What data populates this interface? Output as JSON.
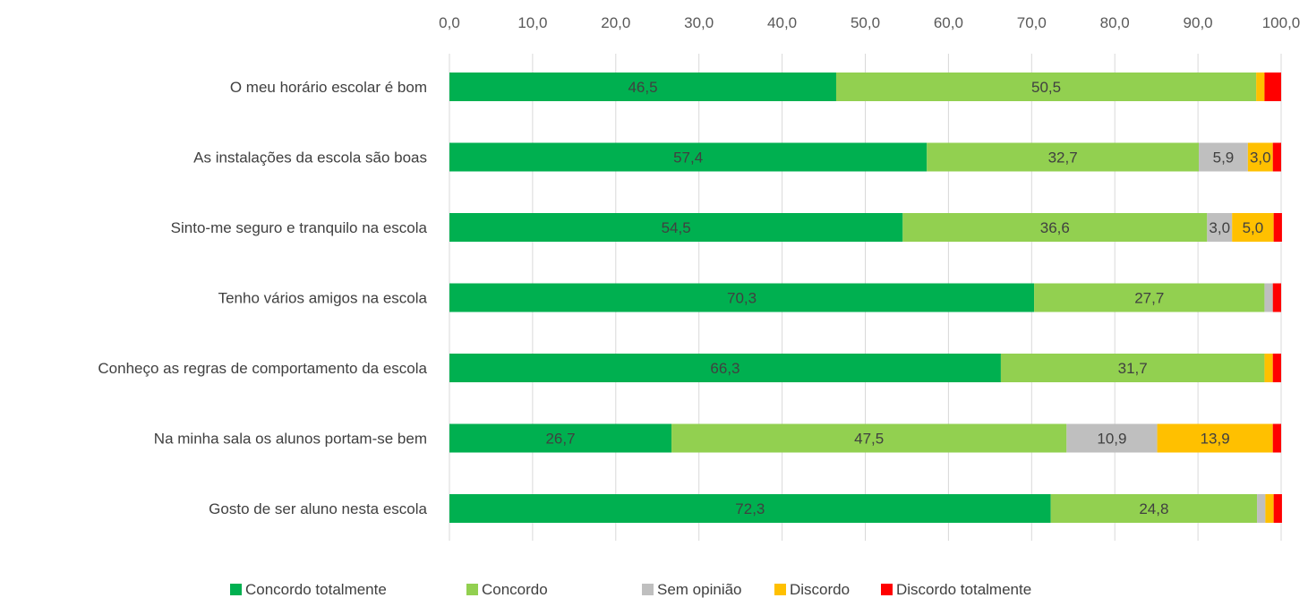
{
  "chart_data": {
    "type": "bar",
    "orientation": "horizontal",
    "stacked": true,
    "categories": [
      "O meu horário escolar é bom",
      "As instalações da escola são boas",
      "Sinto-me seguro e tranquilo na escola",
      "Tenho vários amigos na escola",
      "Conheço as regras de comportamento da escola",
      "Na minha sala os alunos portam-se bem",
      "Gosto de ser aluno nesta escola"
    ],
    "series": [
      {
        "name": "Concordo totalmente",
        "color": "#00b050",
        "values": [
          46.5,
          57.4,
          54.5,
          70.3,
          66.3,
          26.7,
          72.3
        ]
      },
      {
        "name": "Concordo",
        "color": "#92d050",
        "values": [
          50.5,
          32.7,
          36.6,
          27.7,
          31.7,
          47.5,
          24.8
        ]
      },
      {
        "name": "Sem opinião",
        "color": "#bfbfbf",
        "values": [
          0.0,
          5.9,
          3.0,
          1.0,
          0.0,
          10.9,
          1.0
        ]
      },
      {
        "name": "Discordo",
        "color": "#ffc000",
        "values": [
          1.0,
          3.0,
          5.0,
          0.0,
          1.0,
          13.9,
          1.0
        ]
      },
      {
        "name": "Discordo totalmente",
        "color": "#ff0000",
        "values": [
          2.0,
          1.0,
          1.0,
          1.0,
          1.0,
          1.0,
          1.0
        ]
      }
    ],
    "data_labels": [
      [
        "46,5",
        "50,5",
        "",
        "",
        ""
      ],
      [
        "57,4",
        "32,7",
        "5,9",
        "3,0",
        ""
      ],
      [
        "54,5",
        "36,6",
        "3,0",
        "5,0",
        ""
      ],
      [
        "70,3",
        "27,7",
        "",
        "",
        ""
      ],
      [
        "66,3",
        "31,7",
        "",
        "",
        ""
      ],
      [
        "26,7",
        "47,5",
        "10,9",
        "13,9",
        ""
      ],
      [
        "72,3",
        "24,8",
        "",
        "",
        ""
      ]
    ],
    "x_ticks": [
      "0,0",
      "10,0",
      "20,0",
      "30,0",
      "40,0",
      "50,0",
      "60,0",
      "70,0",
      "80,0",
      "90,0",
      "100,0"
    ],
    "xlim": [
      0,
      100
    ],
    "x_axis_position": "top",
    "grid": true,
    "legend": "bottom"
  }
}
